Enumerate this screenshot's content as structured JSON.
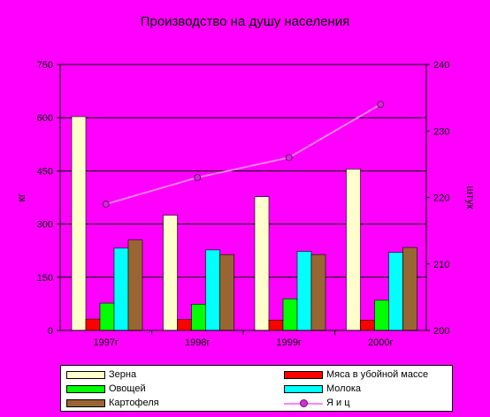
{
  "chart_data": {
    "type": "bar",
    "title": "Производство на душу населения",
    "ylabel_left": "кг",
    "ylabel_right": "штук",
    "categories": [
      "1997г",
      "1998г",
      "1999г",
      "2000г"
    ],
    "ylim_left": [
      0,
      750
    ],
    "yticks_left": [
      "0",
      "150",
      "300",
      "450",
      "600",
      "750"
    ],
    "ylim_right": [
      200,
      240
    ],
    "yticks_right": [
      "200",
      "210",
      "220",
      "230",
      "240"
    ],
    "series": [
      {
        "name": "Зерна",
        "color": "#ffffcc",
        "values": [
          603,
          325,
          377,
          455
        ]
      },
      {
        "name": "Мяса в убойной массе",
        "color": "#ff0000",
        "values": [
          32,
          31,
          29,
          29
        ]
      },
      {
        "name": "Овощей",
        "color": "#00ff00",
        "values": [
          77,
          74,
          89,
          85
        ]
      },
      {
        "name": "Молока",
        "color": "#00ffff",
        "values": [
          232,
          227,
          223,
          220
        ]
      },
      {
        "name": "Картофеля",
        "color": "#996633",
        "values": [
          255,
          214,
          214,
          234
        ]
      }
    ],
    "line_series": {
      "name": "Я и ц",
      "color": "#ff80ff",
      "marker_color": "#cc33cc",
      "axis": "right",
      "values": [
        219,
        223,
        226,
        234
      ]
    },
    "legend_position": "bottom"
  }
}
